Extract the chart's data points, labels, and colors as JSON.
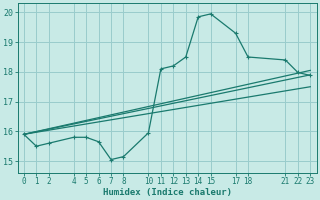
{
  "xlabel": "Humidex (Indice chaleur)",
  "bg_color": "#c8eae6",
  "grid_color": "#99cccc",
  "line_color": "#1a7a6e",
  "xlim": [
    -0.5,
    23.5
  ],
  "ylim": [
    14.6,
    20.3
  ],
  "yticks": [
    15,
    16,
    17,
    18,
    19,
    20
  ],
  "xticks": [
    0,
    1,
    2,
    4,
    5,
    6,
    7,
    8,
    10,
    11,
    12,
    13,
    14,
    15,
    17,
    18,
    21,
    22,
    23
  ],
  "line1_x": [
    0,
    1,
    2,
    4,
    5,
    6,
    7,
    8,
    10,
    11,
    12,
    13,
    14,
    15,
    17,
    18,
    21,
    22,
    23
  ],
  "line1_y": [
    15.9,
    15.5,
    15.6,
    15.8,
    15.8,
    15.65,
    15.05,
    15.15,
    15.95,
    18.1,
    18.2,
    18.5,
    19.85,
    19.95,
    19.3,
    18.5,
    18.4,
    17.98,
    17.88
  ],
  "line2_x": [
    0,
    23
  ],
  "line2_y": [
    15.9,
    17.9
  ],
  "line3_x": [
    0,
    23
  ],
  "line3_y": [
    15.9,
    18.05
  ],
  "line4_x": [
    0,
    23
  ],
  "line4_y": [
    15.9,
    17.5
  ]
}
